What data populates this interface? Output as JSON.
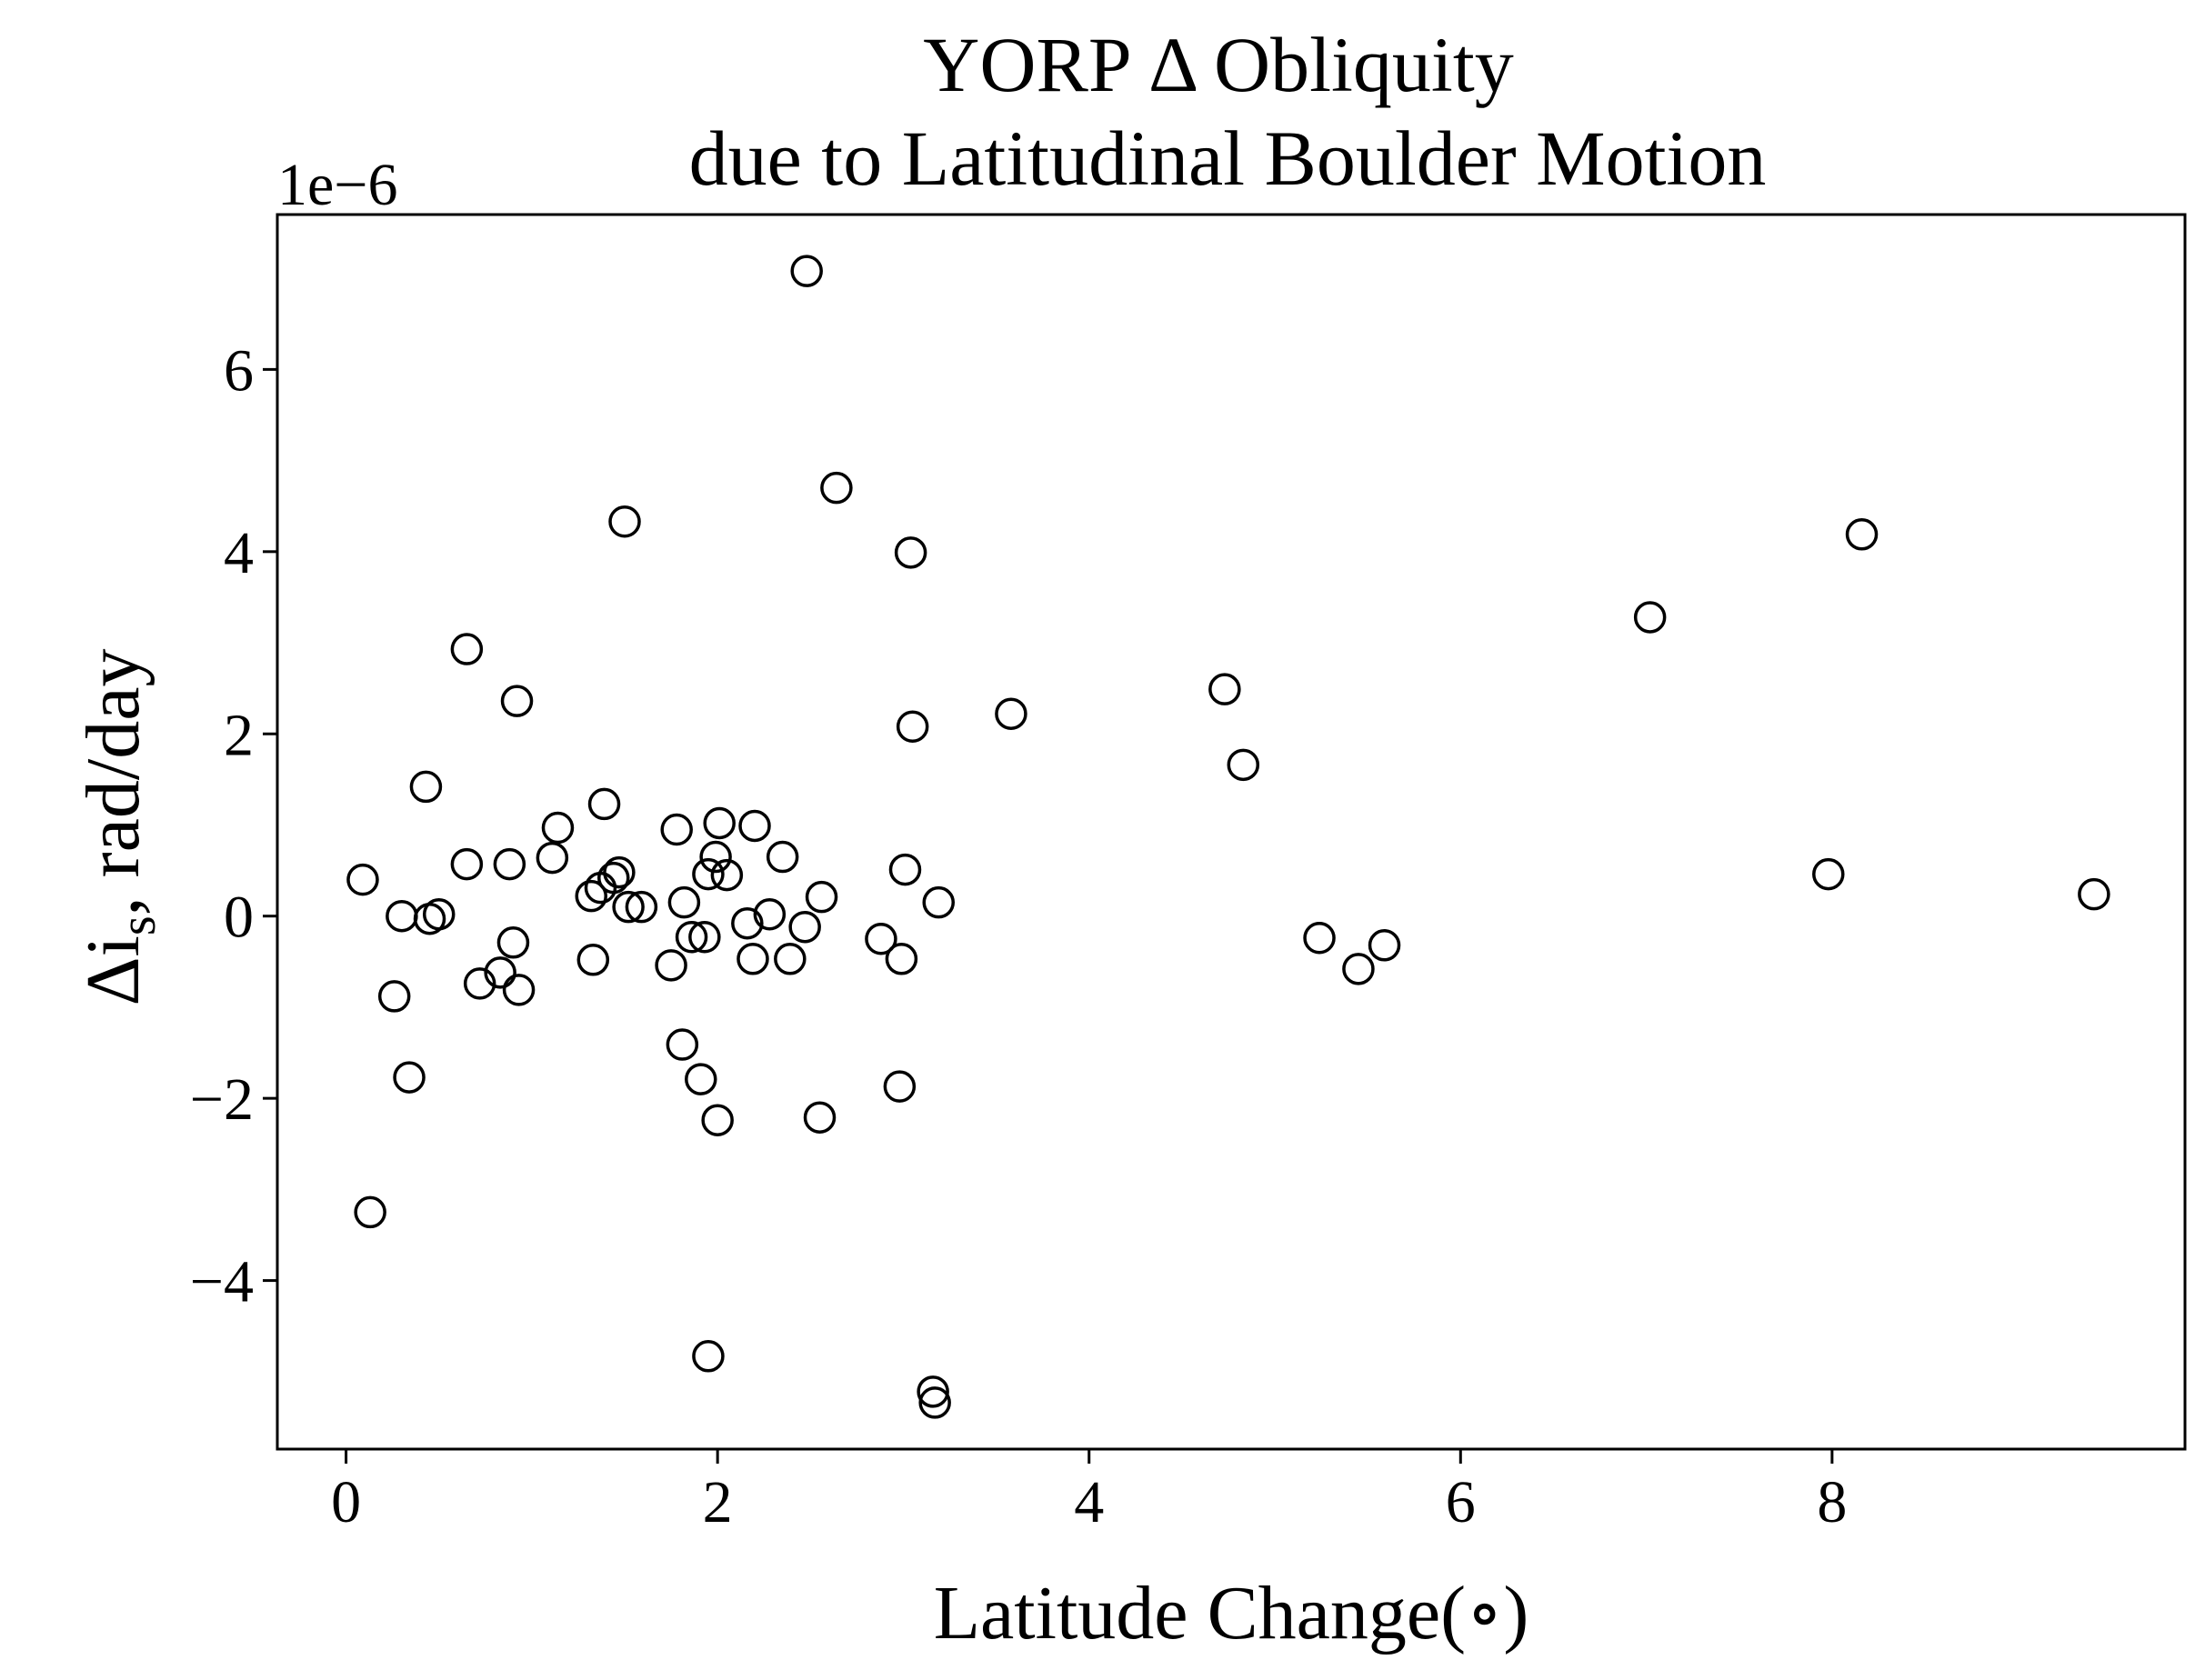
{
  "chart_data": {
    "type": "scatter",
    "title_line1": "YORP Δ Obliquity",
    "title_line2": "due to Latitudinal Boulder Motion",
    "xlabel": "Latitude Change(∘)",
    "ylabel_prefix": "Δi",
    "ylabel_sub": "s",
    "ylabel_suffix": ", rad/day",
    "y_offset_label": "1e−6",
    "y_scale": 1e-06,
    "xlim": [
      -0.37,
      9.9
    ],
    "ylim": [
      -5.85e-06,
      7.7e-06
    ],
    "xticks": [
      0,
      2,
      4,
      6,
      8
    ],
    "xtick_labels": [
      "0",
      "2",
      "4",
      "6",
      "8"
    ],
    "yticks": [
      -4e-06,
      -2e-06,
      0,
      2e-06,
      4e-06,
      6e-06
    ],
    "ytick_labels": [
      "−4",
      "−2",
      "0",
      "2",
      "4",
      "6"
    ],
    "grid": false,
    "marker": "open-circle",
    "points": [
      {
        "x": 0.09,
        "y": 4e-07
      },
      {
        "x": 0.13,
        "y": -3.25e-06
      },
      {
        "x": 0.26,
        "y": -8.8e-07
      },
      {
        "x": 0.3,
        "y": 0.0
      },
      {
        "x": 0.34,
        "y": -1.77e-06
      },
      {
        "x": 0.43,
        "y": 1.42e-06
      },
      {
        "x": 0.45,
        "y": -3e-08
      },
      {
        "x": 0.5,
        "y": 2e-08
      },
      {
        "x": 0.65,
        "y": 2.93e-06
      },
      {
        "x": 0.65,
        "y": 5.7e-07
      },
      {
        "x": 0.72,
        "y": -7.4e-07
      },
      {
        "x": 0.83,
        "y": -6.2e-07
      },
      {
        "x": 0.88,
        "y": 5.7e-07
      },
      {
        "x": 0.9,
        "y": -2.9e-07
      },
      {
        "x": 0.92,
        "y": 2.36e-06
      },
      {
        "x": 0.93,
        "y": -8.1e-07
      },
      {
        "x": 1.11,
        "y": 6.4e-07
      },
      {
        "x": 1.14,
        "y": 9.7e-07
      },
      {
        "x": 1.32,
        "y": 2.2e-07
      },
      {
        "x": 1.33,
        "y": -4.8e-07
      },
      {
        "x": 1.37,
        "y": 3.1e-07
      },
      {
        "x": 1.39,
        "y": 1.23e-06
      },
      {
        "x": 1.44,
        "y": 4.2e-07
      },
      {
        "x": 1.47,
        "y": 4.8e-07
      },
      {
        "x": 1.5,
        "y": 4.33e-06
      },
      {
        "x": 1.52,
        "y": 1e-07
      },
      {
        "x": 1.59,
        "y": 1e-07
      },
      {
        "x": 1.75,
        "y": -5.4e-07
      },
      {
        "x": 1.78,
        "y": 9.5e-07
      },
      {
        "x": 1.81,
        "y": -1.41e-06
      },
      {
        "x": 1.82,
        "y": 1.5e-07
      },
      {
        "x": 1.86,
        "y": -2.3e-07
      },
      {
        "x": 1.91,
        "y": -1.79e-06
      },
      {
        "x": 1.93,
        "y": -2.3e-07
      },
      {
        "x": 1.95,
        "y": 4.6e-07
      },
      {
        "x": 1.95,
        "y": -4.83e-06
      },
      {
        "x": 1.99,
        "y": 6.5e-07
      },
      {
        "x": 2.0,
        "y": -2.24e-06
      },
      {
        "x": 2.01,
        "y": 1.02e-06
      },
      {
        "x": 2.05,
        "y": 4.5e-07
      },
      {
        "x": 2.16,
        "y": -8e-08
      },
      {
        "x": 2.19,
        "y": -4.7e-07
      },
      {
        "x": 2.2,
        "y": 9.9e-07
      },
      {
        "x": 2.28,
        "y": 2e-08
      },
      {
        "x": 2.35,
        "y": 6.5e-07
      },
      {
        "x": 2.39,
        "y": -4.7e-07
      },
      {
        "x": 2.47,
        "y": -1.2e-07
      },
      {
        "x": 2.48,
        "y": 7.08e-06
      },
      {
        "x": 2.55,
        "y": -2.21e-06
      },
      {
        "x": 2.56,
        "y": 2.1e-07
      },
      {
        "x": 2.64,
        "y": 4.7e-06
      },
      {
        "x": 2.88,
        "y": -2.5e-07
      },
      {
        "x": 2.98,
        "y": -1.87e-06
      },
      {
        "x": 2.99,
        "y": -4.7e-07
      },
      {
        "x": 3.01,
        "y": 5.1e-07
      },
      {
        "x": 3.04,
        "y": 3.99e-06
      },
      {
        "x": 3.05,
        "y": 2.08e-06
      },
      {
        "x": 3.16,
        "y": -5.22e-06
      },
      {
        "x": 3.17,
        "y": -5.34e-06
      },
      {
        "x": 3.19,
        "y": 1.5e-07
      },
      {
        "x": 3.58,
        "y": 2.22e-06
      },
      {
        "x": 4.73,
        "y": 2.49e-06
      },
      {
        "x": 4.83,
        "y": 1.66e-06
      },
      {
        "x": 5.24,
        "y": -2.4e-07
      },
      {
        "x": 5.45,
        "y": -5.8e-07
      },
      {
        "x": 5.59,
        "y": -3.2e-07
      },
      {
        "x": 7.02,
        "y": 3.28e-06
      },
      {
        "x": 7.98,
        "y": 4.6e-07
      },
      {
        "x": 8.16,
        "y": 4.19e-06
      },
      {
        "x": 9.41,
        "y": 2.4e-07
      }
    ]
  }
}
